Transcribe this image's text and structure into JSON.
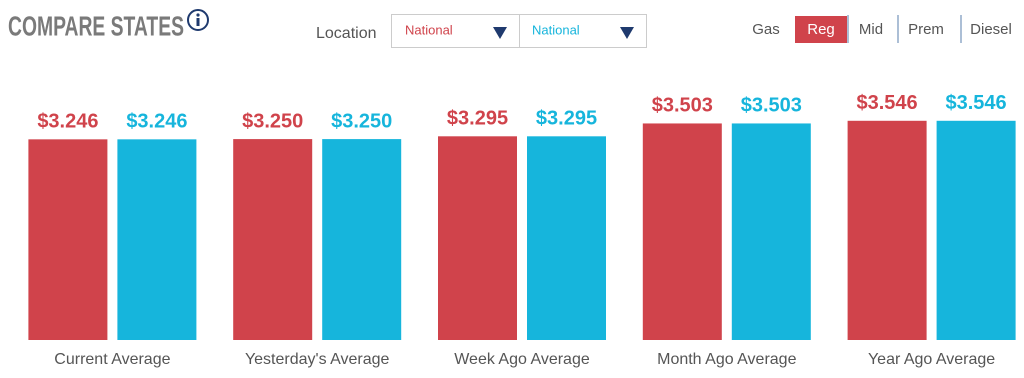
{
  "header": {
    "title": "COMPARE STATES",
    "location_label": "Location",
    "fuel_tabs": [
      "Gas",
      "Reg",
      "Mid",
      "Prem",
      "Diesel"
    ],
    "selected_tab": 1
  },
  "chart_data": {
    "type": "bar",
    "categories": [
      "Current Average",
      "Yesterday's Average",
      "Week Ago Average",
      "Month Ago Average",
      "Year Ago Average"
    ],
    "series": [
      {
        "name": "National",
        "color": "#d0434b",
        "values": [
          3.246,
          3.25,
          3.295,
          3.503,
          3.546
        ],
        "value_labels": [
          "$3.246",
          "$3.250",
          "$3.295",
          "$3.503",
          "$3.546"
        ]
      },
      {
        "name": "National",
        "color": "#16b5dc",
        "values": [
          3.246,
          3.25,
          3.295,
          3.503,
          3.546
        ],
        "value_labels": [
          "$3.246",
          "$3.250",
          "$3.295",
          "$3.503",
          "$3.546"
        ]
      }
    ],
    "ylim": [
      0,
      5.5
    ]
  }
}
